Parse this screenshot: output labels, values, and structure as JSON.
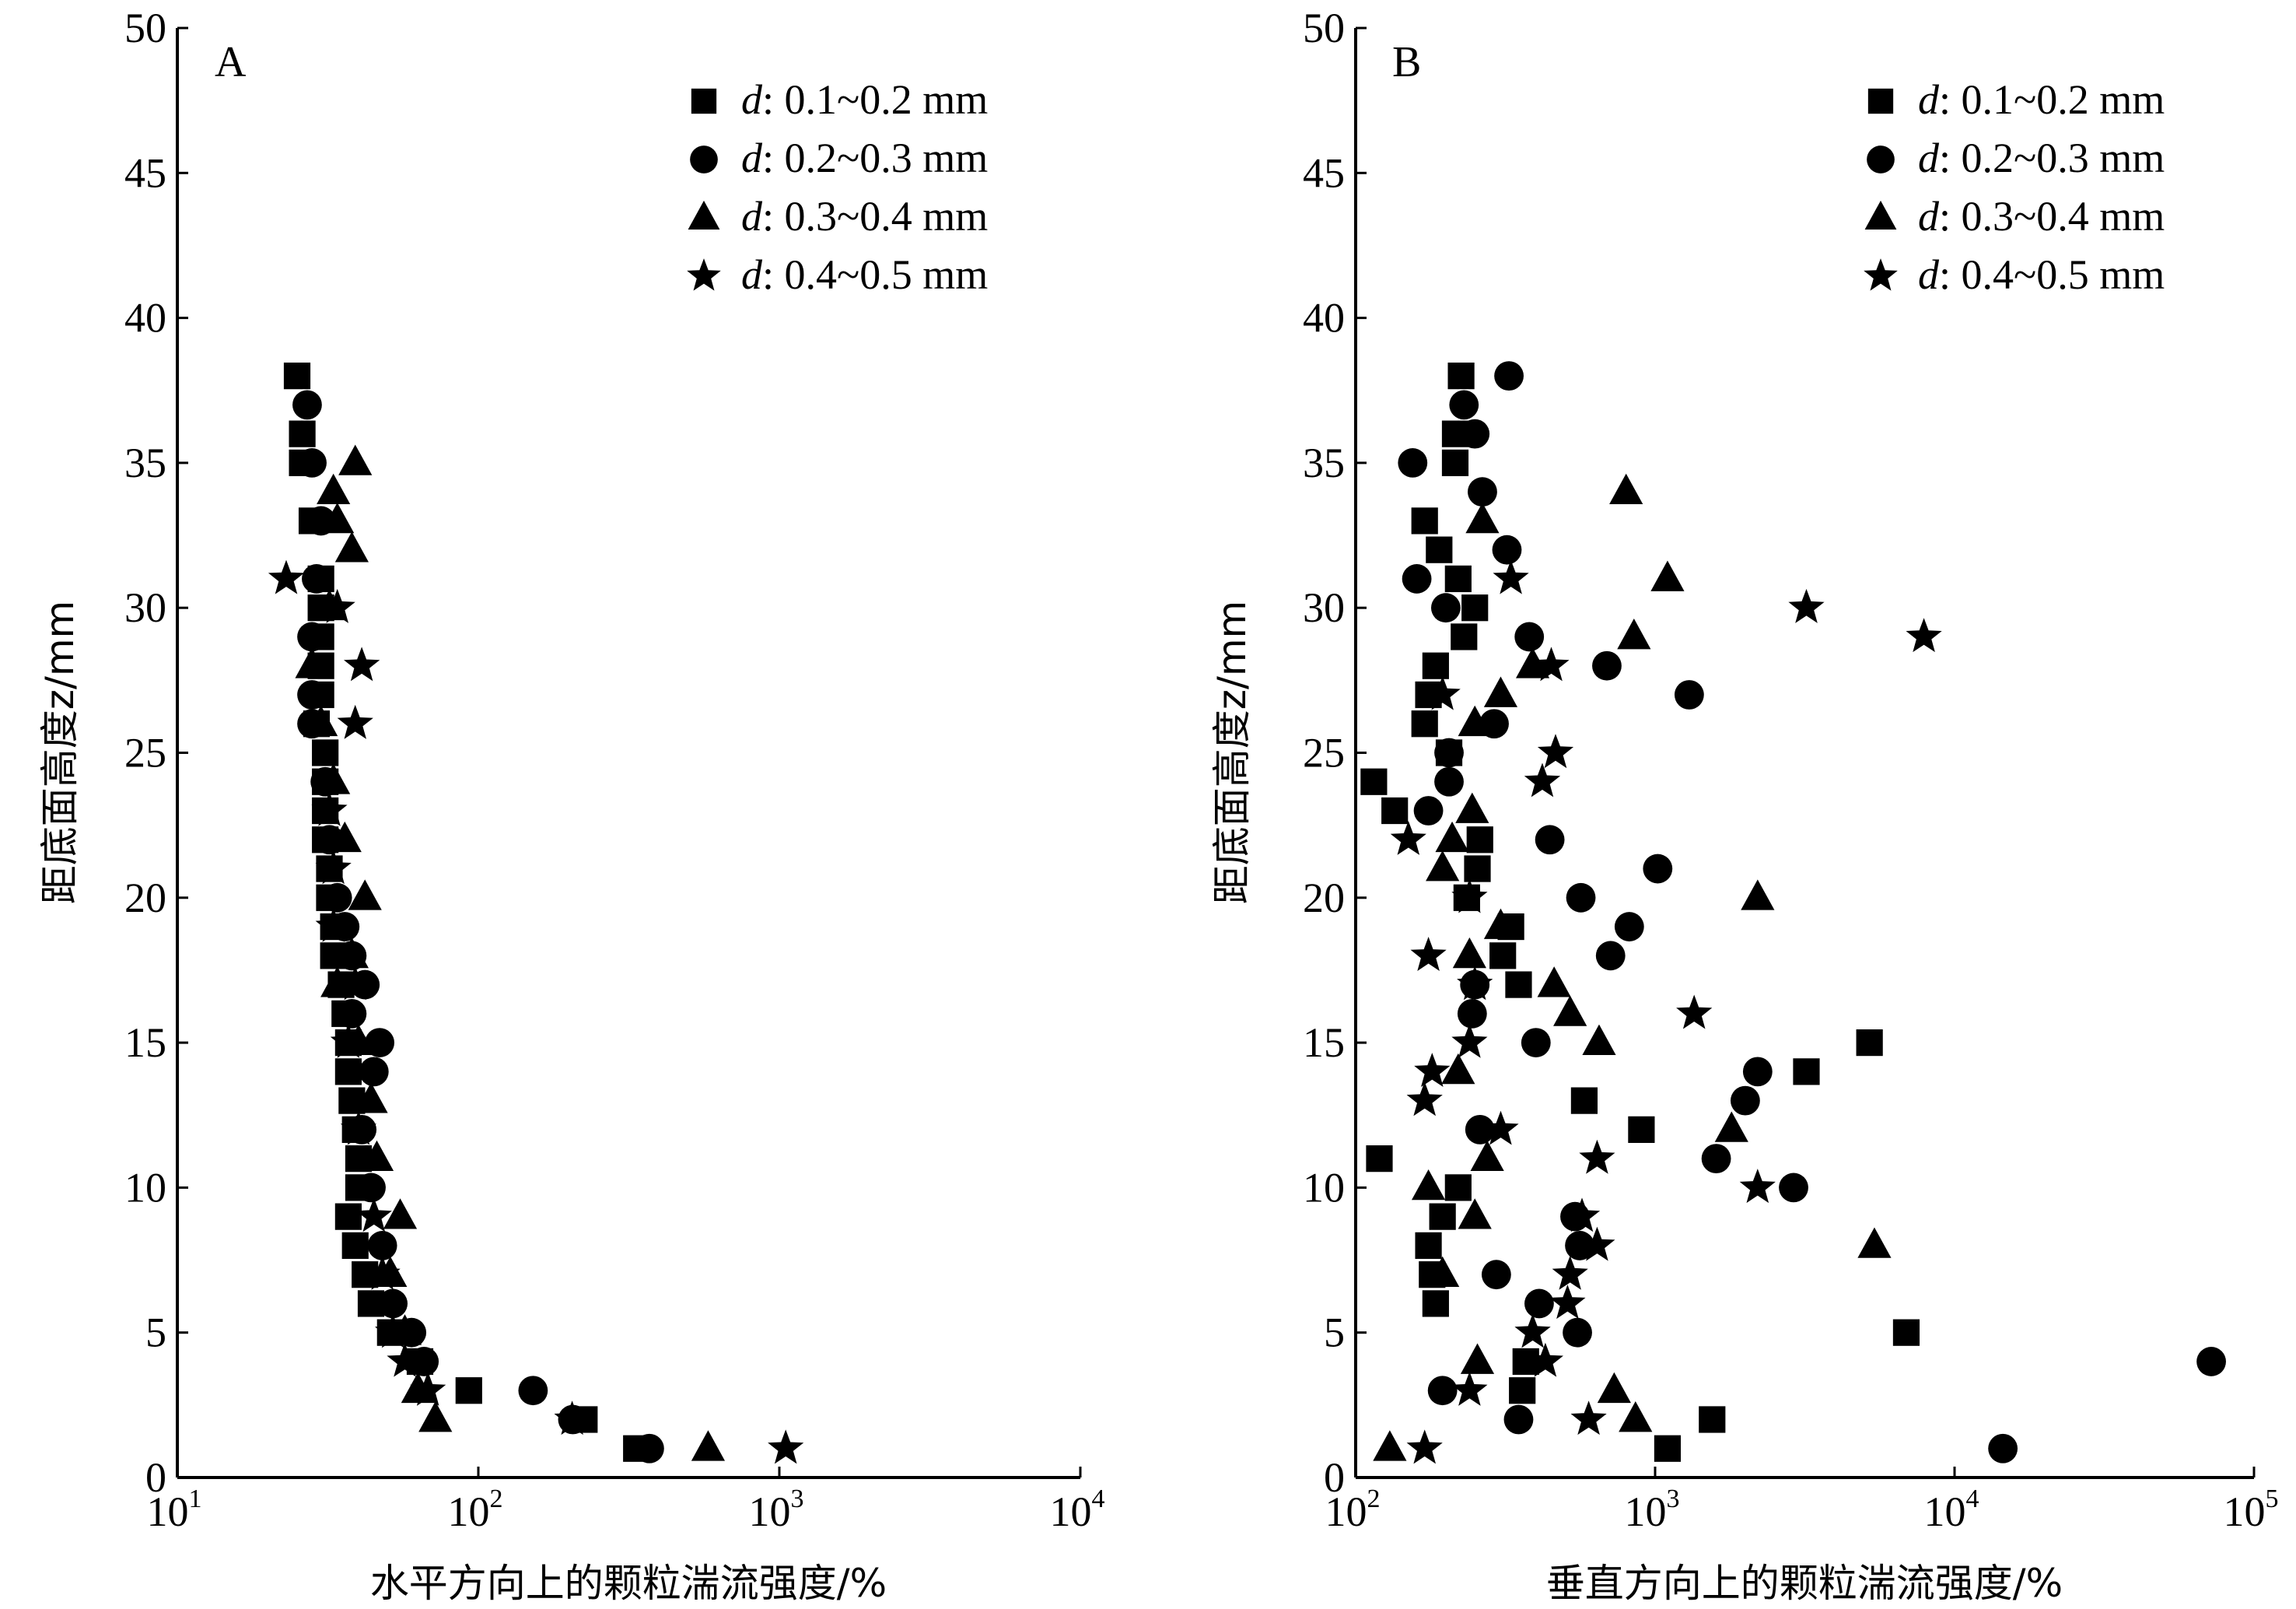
{
  "chart_data": [
    {
      "type": "scatter",
      "panel": "A",
      "xscale": "log",
      "xlim": [
        10,
        10000
      ],
      "ylim": [
        0,
        50
      ],
      "xticks": [
        {
          "base": "10",
          "exp": "1"
        },
        {
          "base": "10",
          "exp": "2"
        },
        {
          "base": "10",
          "exp": "3"
        },
        {
          "base": "10",
          "exp": "4"
        }
      ],
      "yticks": [
        "0",
        "5",
        "10",
        "15",
        "20",
        "25",
        "30",
        "35",
        "40",
        "45",
        "50"
      ],
      "xlabel": "水平方向上的颗粒湍流强度/%",
      "ylabel": "距底面高度z/mm",
      "legend_position": "top-right",
      "series": [
        {
          "name": "d: 0.1~0.2 mm",
          "marker": "square",
          "points": [
            [
              25,
              38
            ],
            [
              26,
              36
            ],
            [
              26,
              35
            ],
            [
              28,
              33
            ],
            [
              30,
              31
            ],
            [
              30,
              30
            ],
            [
              30,
              29
            ],
            [
              30,
              28
            ],
            [
              30,
              27
            ],
            [
              29,
              26
            ],
            [
              31,
              25
            ],
            [
              31,
              24
            ],
            [
              31,
              23
            ],
            [
              31,
              22
            ],
            [
              32,
              21
            ],
            [
              32,
              20
            ],
            [
              33,
              19
            ],
            [
              33,
              18
            ],
            [
              35,
              17
            ],
            [
              36,
              16
            ],
            [
              37,
              15
            ],
            [
              37,
              14
            ],
            [
              38,
              13
            ],
            [
              39,
              12
            ],
            [
              40,
              11
            ],
            [
              40,
              10
            ],
            [
              37,
              9
            ],
            [
              39,
              8
            ],
            [
              42,
              7
            ],
            [
              44,
              6
            ],
            [
              51,
              5
            ],
            [
              64,
              4
            ],
            [
              93,
              3
            ],
            [
              225,
              2
            ],
            [
              335,
              1
            ]
          ]
        },
        {
          "name": "d: 0.2~0.3 mm",
          "marker": "circle",
          "points": [
            [
              27,
              37
            ],
            [
              28,
              35
            ],
            [
              30,
              33
            ],
            [
              29,
              31
            ],
            [
              28,
              29
            ],
            [
              28,
              27
            ],
            [
              28,
              26
            ],
            [
              31,
              24
            ],
            [
              32,
              22
            ],
            [
              34,
              20
            ],
            [
              36,
              19
            ],
            [
              38,
              18
            ],
            [
              42,
              17
            ],
            [
              38,
              16
            ],
            [
              47,
              15
            ],
            [
              45,
              14
            ],
            [
              41,
              12
            ],
            [
              44,
              10
            ],
            [
              48,
              8
            ],
            [
              52,
              6
            ],
            [
              60,
              5
            ],
            [
              66,
              4
            ],
            [
              152,
              3
            ],
            [
              206,
              2
            ],
            [
              370,
              1
            ]
          ]
        },
        {
          "name": "d: 0.3~0.4 mm",
          "marker": "triangle",
          "points": [
            [
              39,
              35
            ],
            [
              33,
              34
            ],
            [
              34,
              33
            ],
            [
              38,
              32
            ],
            [
              32,
              30
            ],
            [
              28,
              28
            ],
            [
              30,
              26
            ],
            [
              33,
              24
            ],
            [
              36,
              22
            ],
            [
              42,
              20
            ],
            [
              38,
              18
            ],
            [
              34,
              17
            ],
            [
              40,
              15
            ],
            [
              44,
              13
            ],
            [
              46,
              11
            ],
            [
              55,
              9
            ],
            [
              51,
              7
            ],
            [
              57,
              5
            ],
            [
              63,
              3
            ],
            [
              72,
              2
            ],
            [
              580,
              1
            ]
          ]
        },
        {
          "name": "d: 0.4~0.5 mm",
          "marker": "star",
          "points": [
            [
              23,
              31
            ],
            [
              34,
              30
            ],
            [
              41,
              28
            ],
            [
              39,
              26
            ],
            [
              32,
              23
            ],
            [
              33,
              21
            ],
            [
              33,
              19
            ],
            [
              39,
              17
            ],
            [
              37,
              15
            ],
            [
              40,
              12
            ],
            [
              45,
              9
            ],
            [
              48,
              7
            ],
            [
              52,
              5
            ],
            [
              57,
              4
            ],
            [
              68,
              3
            ],
            [
              205,
              2
            ],
            [
              1050,
              1
            ]
          ]
        }
      ]
    },
    {
      "type": "scatter",
      "panel": "B",
      "xscale": "log",
      "xlim": [
        100,
        100000
      ],
      "ylim": [
        0,
        50
      ],
      "xticks": [
        {
          "base": "10",
          "exp": "2"
        },
        {
          "base": "10",
          "exp": "3"
        },
        {
          "base": "10",
          "exp": "4"
        },
        {
          "base": "10",
          "exp": "5"
        }
      ],
      "yticks": [
        "0",
        "5",
        "10",
        "15",
        "20",
        "25",
        "30",
        "35",
        "40",
        "45",
        "50"
      ],
      "xlabel": "垂直方向上的颗粒湍流强度/%",
      "ylabel": "距底面高度z/mm",
      "legend_position": "top-right",
      "series": [
        {
          "name": "d: 0.1~0.2 mm",
          "marker": "square",
          "points": [
            [
              225,
              38
            ],
            [
              215,
              36
            ],
            [
              215,
              35
            ],
            [
              170,
              33
            ],
            [
              190,
              32
            ],
            [
              220,
              31
            ],
            [
              250,
              30
            ],
            [
              230,
              29
            ],
            [
              185,
              28
            ],
            [
              175,
              27
            ],
            [
              170,
              26
            ],
            [
              205,
              25
            ],
            [
              115,
              24
            ],
            [
              135,
              23
            ],
            [
              260,
              22
            ],
            [
              255,
              21
            ],
            [
              235,
              20
            ],
            [
              330,
              19
            ],
            [
              310,
              18
            ],
            [
              350,
              17
            ],
            [
              5200,
              15
            ],
            [
              3200,
              14
            ],
            [
              580,
              13
            ],
            [
              900,
              12
            ],
            [
              120,
              11
            ],
            [
              220,
              10
            ],
            [
              195,
              9
            ],
            [
              175,
              8
            ],
            [
              180,
              7
            ],
            [
              185,
              6
            ],
            [
              6900,
              5
            ],
            [
              370,
              4
            ],
            [
              360,
              3
            ],
            [
              1550,
              2
            ],
            [
              1100,
              1
            ]
          ]
        },
        {
          "name": "d: 0.2~0.3 mm",
          "marker": "circle",
          "points": [
            [
              325,
              38
            ],
            [
              230,
              37
            ],
            [
              250,
              36
            ],
            [
              155,
              35
            ],
            [
              265,
              34
            ],
            [
              320,
              32
            ],
            [
              160,
              31
            ],
            [
              200,
              30
            ],
            [
              380,
              29
            ],
            [
              690,
              28
            ],
            [
              1300,
              27
            ],
            [
              290,
              26
            ],
            [
              205,
              25
            ],
            [
              205,
              24
            ],
            [
              175,
              23
            ],
            [
              445,
              22
            ],
            [
              1020,
              21
            ],
            [
              565,
              20
            ],
            [
              820,
              19
            ],
            [
              710,
              18
            ],
            [
              250,
              17
            ],
            [
              245,
              16
            ],
            [
              400,
              15
            ],
            [
              2200,
              14
            ],
            [
              2000,
              13
            ],
            [
              260,
              12
            ],
            [
              1600,
              11
            ],
            [
              2900,
              10
            ],
            [
              540,
              9
            ],
            [
              560,
              8
            ],
            [
              295,
              7
            ],
            [
              410,
              6
            ],
            [
              550,
              5
            ],
            [
              72000,
              4
            ],
            [
              195,
              3
            ],
            [
              350,
              2
            ],
            [
              14500,
              1
            ]
          ]
        },
        {
          "name": "d: 0.3~0.4 mm",
          "marker": "triangle",
          "points": [
            [
              800,
              34
            ],
            [
              265,
              33
            ],
            [
              1100,
              31
            ],
            [
              850,
              29
            ],
            [
              390,
              28
            ],
            [
              305,
              27
            ],
            [
              250,
              26
            ],
            [
              245,
              23
            ],
            [
              210,
              22
            ],
            [
              195,
              21
            ],
            [
              2200,
              20
            ],
            [
              305,
              19
            ],
            [
              240,
              18
            ],
            [
              460,
              17
            ],
            [
              520,
              16
            ],
            [
              650,
              15
            ],
            [
              220,
              14
            ],
            [
              1800,
              12
            ],
            [
              275,
              11
            ],
            [
              175,
              10
            ],
            [
              250,
              9
            ],
            [
              5400,
              8
            ],
            [
              195,
              7
            ],
            [
              255,
              4
            ],
            [
              730,
              3
            ],
            [
              860,
              2
            ],
            [
              130,
              1
            ]
          ]
        },
        {
          "name": "d: 0.4~0.5 mm",
          "marker": "star",
          "points": [
            [
              330,
              31
            ],
            [
              3200,
              30
            ],
            [
              7900,
              29
            ],
            [
              450,
              28
            ],
            [
              195,
              27
            ],
            [
              465,
              25
            ],
            [
              420,
              24
            ],
            [
              150,
              22
            ],
            [
              240,
              20
            ],
            [
              175,
              18
            ],
            [
              250,
              17
            ],
            [
              1350,
              16
            ],
            [
              240,
              15
            ],
            [
              180,
              14
            ],
            [
              170,
              13
            ],
            [
              305,
              12
            ],
            [
              640,
              11
            ],
            [
              2200,
              10
            ],
            [
              570,
              9
            ],
            [
              640,
              8
            ],
            [
              520,
              7
            ],
            [
              510,
              6
            ],
            [
              390,
              5
            ],
            [
              430,
              4
            ],
            [
              240,
              3
            ],
            [
              600,
              2
            ],
            [
              170,
              1
            ]
          ]
        }
      ]
    }
  ],
  "panels": [
    {
      "label": "A"
    },
    {
      "label": "B"
    }
  ]
}
